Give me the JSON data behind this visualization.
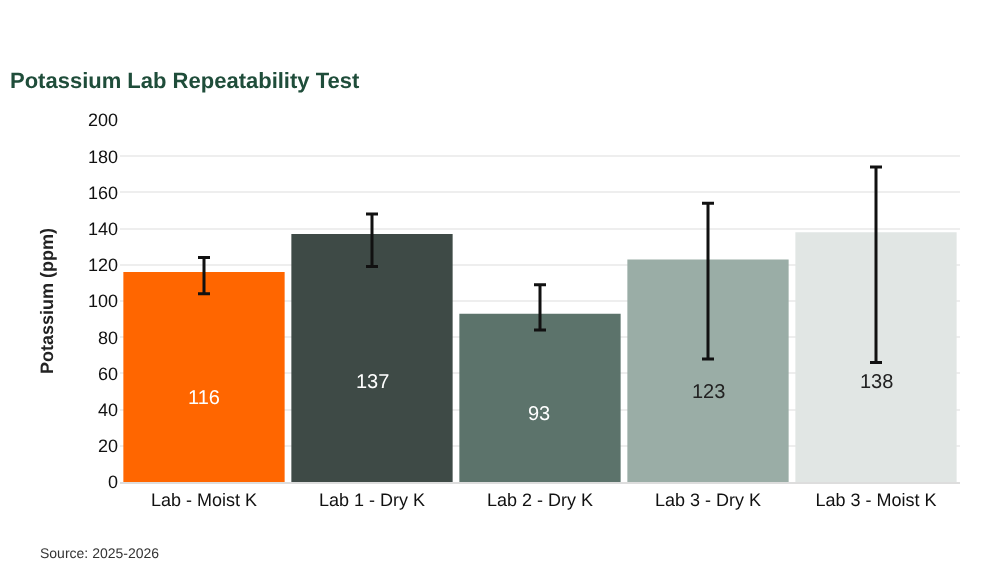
{
  "chart_data": {
    "type": "bar",
    "title": "Potassium Lab Repeatability Test",
    "ylabel": "Potassium (ppm)",
    "categories": [
      "Lab - Moist K",
      "Lab 1 - Dry K",
      "Lab 2 - Dry K",
      "Lab 3 - Dry K",
      "Lab 3 - Moist K"
    ],
    "values": [
      116,
      137,
      93,
      123,
      138
    ],
    "colors": [
      "#ff6600",
      "#3e4a46",
      "#5c736b",
      "#9aada6",
      "#e1e6e4"
    ],
    "errors": [
      [
        104,
        124
      ],
      [
        119,
        148
      ],
      [
        84,
        109
      ],
      [
        68,
        154
      ],
      [
        66,
        174
      ]
    ],
    "ylim": [
      0,
      200
    ],
    "yticks": [
      0,
      20,
      40,
      60,
      80,
      100,
      120,
      140,
      160,
      180,
      200
    ],
    "grid": "y",
    "data_labels": true,
    "annotations": [
      "Source: 2025-2026"
    ]
  }
}
